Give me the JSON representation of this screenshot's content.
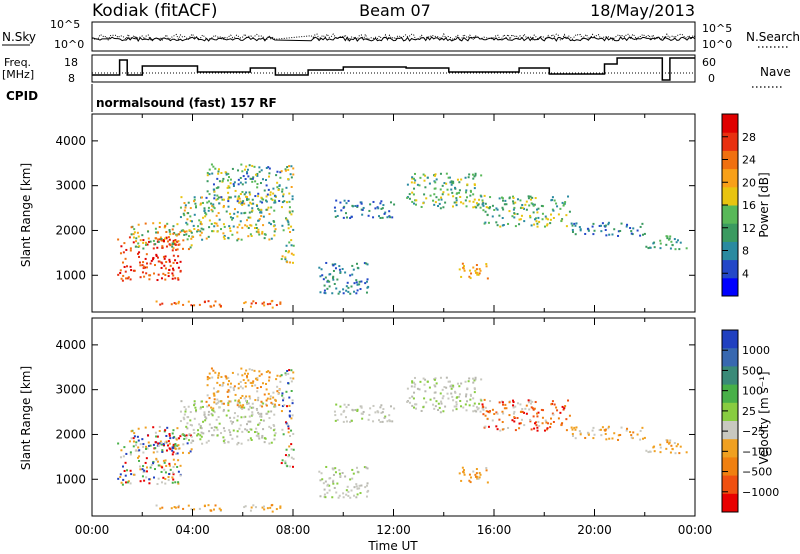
{
  "header": {
    "title": "Kodiak (fitACF)",
    "beam": "Beam 07",
    "date": "18/May/2013"
  },
  "status_panels": {
    "nsky_label": "N.Sky",
    "nsearch_label": "N.Search",
    "noise_ticks": [
      "10^5",
      "10^0"
    ],
    "freq_label": "Freq.",
    "freq_unit": "[MHz]",
    "freq_ticks": [
      "18",
      "8"
    ],
    "nave_label": "Nave",
    "nave_ticks": [
      "60",
      "0"
    ],
    "cpid_label": "CPID",
    "cpid_text": "normalsound (fast) 157 RF"
  },
  "chart_data": [
    {
      "type": "heatmap",
      "title": "",
      "ylabel": "Slant Range [km]",
      "xlabel": "",
      "y_ticks": [
        1000,
        2000,
        3000,
        4000
      ],
      "ylim": [
        180,
        4600
      ],
      "xlim_hours": [
        0,
        24
      ],
      "colorbar": {
        "label": "Power [dB]",
        "ticks": [
          4,
          8,
          12,
          16,
          20,
          24,
          28
        ],
        "colors": [
          "#0000ff",
          "#2448c8",
          "#2a8aa0",
          "#3a9a60",
          "#58b858",
          "#e8c410",
          "#f8a018",
          "#f07010",
          "#e83010",
          "#e00000"
        ]
      }
    },
    {
      "type": "heatmap",
      "title": "",
      "ylabel": "Slant Range [km]",
      "xlabel": "Time UT",
      "x_ticks": [
        "00:00",
        "04:00",
        "08:00",
        "12:00",
        "16:00",
        "20:00",
        "00:00"
      ],
      "y_ticks": [
        1000,
        2000,
        3000,
        4000
      ],
      "ylim": [
        180,
        4600
      ],
      "xlim_hours": [
        0,
        24
      ],
      "colorbar": {
        "label": "Velocity [m s⁻¹]",
        "ticks": [
          "1000",
          "500",
          "100",
          "25",
          "−25",
          "−100",
          "−500",
          "−1000"
        ],
        "colors": [
          "#2040c0",
          "#3868b0",
          "#3a8a78",
          "#48b048",
          "#88cc40",
          "#c8c8c0",
          "#f0a020",
          "#f08010",
          "#f05010",
          "#e80000"
        ]
      }
    }
  ]
}
